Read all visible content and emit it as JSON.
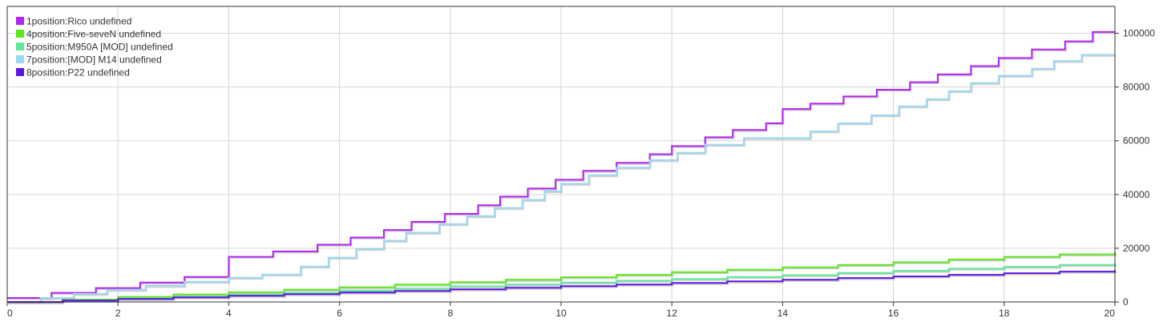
{
  "chart_data": {
    "type": "line",
    "step": true,
    "grid": true,
    "legend_position": "top-left",
    "y_axis_side": "right",
    "xlim": [
      0,
      20
    ],
    "ylim": [
      0,
      110000
    ],
    "x_ticks": [
      0,
      2,
      4,
      6,
      8,
      10,
      12,
      14,
      16,
      18,
      20
    ],
    "y_ticks": [
      0,
      20000,
      40000,
      60000,
      80000,
      100000
    ],
    "series": [
      {
        "name": "1position:Rico undefined",
        "color": "#b224ef",
        "points": [
          [
            0,
            1500
          ],
          [
            0.8,
            3400
          ],
          [
            1.6,
            5200
          ],
          [
            2.4,
            7200
          ],
          [
            3.2,
            9300
          ],
          [
            4.0,
            16800
          ],
          [
            4.8,
            18800
          ],
          [
            5.6,
            21300
          ],
          [
            6.2,
            24000
          ],
          [
            6.8,
            26800
          ],
          [
            7.3,
            29800
          ],
          [
            7.9,
            32800
          ],
          [
            8.5,
            36000
          ],
          [
            8.9,
            39200
          ],
          [
            9.4,
            42200
          ],
          [
            9.9,
            45500
          ],
          [
            10.4,
            48800
          ],
          [
            11.0,
            51800
          ],
          [
            11.6,
            55000
          ],
          [
            12.0,
            58000
          ],
          [
            12.6,
            61300
          ],
          [
            13.1,
            64000
          ],
          [
            13.7,
            66500
          ],
          [
            14.0,
            71800
          ],
          [
            14.5,
            73800
          ],
          [
            15.1,
            76500
          ],
          [
            15.7,
            79000
          ],
          [
            16.3,
            81800
          ],
          [
            16.8,
            84700
          ],
          [
            17.4,
            87800
          ],
          [
            17.9,
            90800
          ],
          [
            18.5,
            94000
          ],
          [
            19.1,
            97000
          ],
          [
            19.6,
            100500
          ],
          [
            20,
            100500
          ]
        ]
      },
      {
        "name": "4position:Five-seveN undefined",
        "color": "#5ce61c",
        "points": [
          [
            0,
            0
          ],
          [
            1,
            900
          ],
          [
            2,
            1900
          ],
          [
            3,
            2800
          ],
          [
            4,
            3600
          ],
          [
            5,
            4600
          ],
          [
            6,
            5500
          ],
          [
            7,
            6500
          ],
          [
            8,
            7400
          ],
          [
            9,
            8300
          ],
          [
            10,
            9200
          ],
          [
            11,
            10100
          ],
          [
            12,
            11100
          ],
          [
            13,
            12000
          ],
          [
            14,
            12900
          ],
          [
            15,
            13800
          ],
          [
            16,
            14800
          ],
          [
            17,
            15800
          ],
          [
            18,
            16800
          ],
          [
            19,
            17700
          ],
          [
            20,
            18500
          ]
        ]
      },
      {
        "name": "5position:M950A [MOD] undefined",
        "color": "#5ee89a",
        "points": [
          [
            0,
            0
          ],
          [
            1,
            600
          ],
          [
            2,
            1300
          ],
          [
            3,
            2000
          ],
          [
            4,
            2700
          ],
          [
            5,
            3400
          ],
          [
            6,
            4200
          ],
          [
            7,
            5000
          ],
          [
            8,
            5800
          ],
          [
            9,
            6500
          ],
          [
            10,
            7200
          ],
          [
            11,
            7900
          ],
          [
            12,
            8600
          ],
          [
            13,
            9300
          ],
          [
            14,
            10000
          ],
          [
            15,
            10800
          ],
          [
            16,
            11600
          ],
          [
            17,
            12400
          ],
          [
            18,
            13100
          ],
          [
            19,
            13800
          ],
          [
            20,
            14500
          ]
        ]
      },
      {
        "name": "7position:[MOD] M14 undefined",
        "color": "#9dd8f2",
        "points": [
          [
            0,
            0
          ],
          [
            0.6,
            1500
          ],
          [
            1.2,
            3000
          ],
          [
            1.8,
            4500
          ],
          [
            2.5,
            6000
          ],
          [
            3.2,
            7500
          ],
          [
            4.0,
            9000
          ],
          [
            4.6,
            10200
          ],
          [
            5.3,
            13200
          ],
          [
            5.8,
            16500
          ],
          [
            6.3,
            19800
          ],
          [
            6.8,
            22800
          ],
          [
            7.2,
            25800
          ],
          [
            7.8,
            29000
          ],
          [
            8.3,
            32000
          ],
          [
            8.8,
            35000
          ],
          [
            9.3,
            38000
          ],
          [
            9.7,
            41200
          ],
          [
            10.0,
            44000
          ],
          [
            10.5,
            47200
          ],
          [
            11.0,
            50000
          ],
          [
            11.6,
            52800
          ],
          [
            12.1,
            55500
          ],
          [
            12.6,
            58500
          ],
          [
            13.3,
            61000
          ],
          [
            14.5,
            63500
          ],
          [
            15.0,
            66500
          ],
          [
            15.6,
            69500
          ],
          [
            16.1,
            72800
          ],
          [
            16.6,
            75500
          ],
          [
            17.0,
            78500
          ],
          [
            17.4,
            81500
          ],
          [
            17.9,
            84200
          ],
          [
            18.5,
            86800
          ],
          [
            18.9,
            89700
          ],
          [
            19.4,
            92000
          ],
          [
            20,
            92000
          ]
        ]
      },
      {
        "name": "8position:P22 undefined",
        "color": "#5b16e0",
        "points": [
          [
            0,
            0
          ],
          [
            1,
            500
          ],
          [
            2,
            1100
          ],
          [
            3,
            1700
          ],
          [
            4,
            2300
          ],
          [
            5,
            2900
          ],
          [
            6,
            3500
          ],
          [
            7,
            4100
          ],
          [
            8,
            4700
          ],
          [
            9,
            5300
          ],
          [
            10,
            5900
          ],
          [
            11,
            6500
          ],
          [
            12,
            7100
          ],
          [
            13,
            7700
          ],
          [
            14,
            8300
          ],
          [
            15,
            8900
          ],
          [
            16,
            9500
          ],
          [
            17,
            10100
          ],
          [
            18,
            10700
          ],
          [
            19,
            11300
          ],
          [
            20,
            11800
          ]
        ]
      }
    ]
  }
}
